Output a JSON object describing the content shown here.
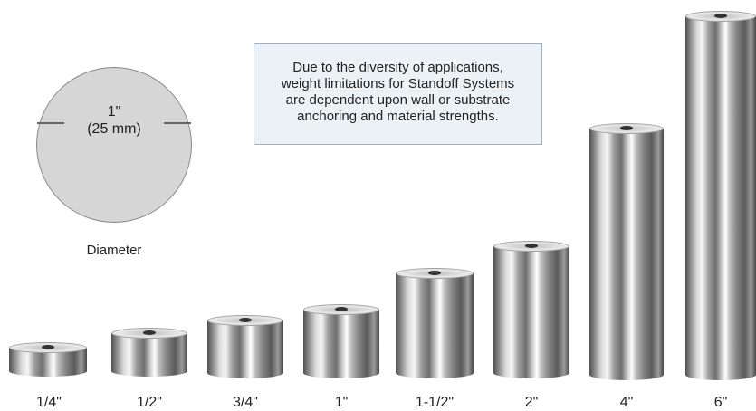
{
  "circle": {
    "size_label": "1\"",
    "metric_label": "(25 mm)",
    "caption": "Diameter",
    "fill": "#d6d6d6"
  },
  "note": {
    "lines": [
      "Due to the diversity of applications,",
      "weight limitations for Standoff Systems",
      "are dependent upon wall or substrate",
      "anchoring and material strengths."
    ],
    "background": "#ebf1f5"
  },
  "standoffs": [
    {
      "label": "1/4\""
    },
    {
      "label": "1/2\""
    },
    {
      "label": "3/4\""
    },
    {
      "label": "1\""
    },
    {
      "label": "1-1/2\""
    },
    {
      "label": "2\""
    },
    {
      "label": "4\""
    },
    {
      "label": "6\""
    }
  ]
}
